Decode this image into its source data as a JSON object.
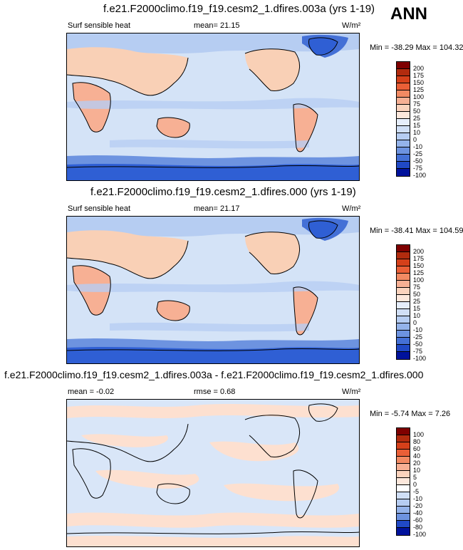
{
  "season": "ANN",
  "panels": [
    {
      "title": "f.e21.F2000climo.f19_f19.cesm2_1.dfires.003a (yrs 1-19)",
      "left_label": "Surf sensible heat",
      "center_label": "mean=  21.15",
      "units": "W/m²",
      "minmax": "Min = -38.29 Max = 104.32",
      "colorbar_labels": [
        "200",
        "175",
        "150",
        "125",
        "100",
        "75",
        "50",
        "25",
        "15",
        "10",
        "0",
        "-10",
        "-25",
        "-50",
        "-75",
        "-100"
      ]
    },
    {
      "title": "f.e21.F2000climo.f19_f19.cesm2_1.dfires.000 (yrs 1-19)",
      "left_label": "Surf sensible heat",
      "center_label": "mean=  21.17",
      "units": "W/m²",
      "minmax": "Min = -38.41 Max = 104.59",
      "colorbar_labels": [
        "200",
        "175",
        "150",
        "125",
        "100",
        "75",
        "50",
        "25",
        "15",
        "10",
        "0",
        "-10",
        "-25",
        "-50",
        "-75",
        "-100"
      ]
    },
    {
      "title": "f.e21.F2000climo.f19_f19.cesm2_1.dfires.003a - f.e21.F2000climo.f19_f19.cesm2_1.dfires.000",
      "left_label": "mean =  -0.02",
      "center_label": "rmse =  0.68",
      "units": "W/m²",
      "minmax": "Min =  -5.74 Max =   7.26",
      "colorbar_labels": [
        "100",
        "80",
        "60",
        "40",
        "20",
        "10",
        "5",
        "0",
        "-5",
        "-10",
        "-20",
        "-40",
        "-60",
        "-80",
        "-100"
      ]
    }
  ],
  "colors": {
    "abs_scale": [
      "#7f0000",
      "#b22b0e",
      "#d5401a",
      "#ea5f37",
      "#f28a63",
      "#f7b094",
      "#fbd3bd",
      "#fde8dc",
      "#e6eefb",
      "#d0dff6",
      "#b6cdf2",
      "#94b3ea",
      "#6d93e0",
      "#4470d6",
      "#2049c6",
      "#00129c"
    ],
    "diff_scale": [
      "#7f0000",
      "#b22b0e",
      "#d5401a",
      "#ea5f37",
      "#f28a63",
      "#f7b094",
      "#fbd3bd",
      "#fde8dc",
      "#ffffff",
      "#d0dff6",
      "#b6cdf2",
      "#94b3ea",
      "#6d93e0",
      "#2049c6",
      "#00129c"
    ],
    "ocean": "#d4e3f7",
    "land_warm": "#f9d0b6",
    "antarctic": "#2f5fd4",
    "ice_cold": "#7ea1e6",
    "diff_bg": "#d9e6f8",
    "diff_warm": "#fde0d0"
  }
}
